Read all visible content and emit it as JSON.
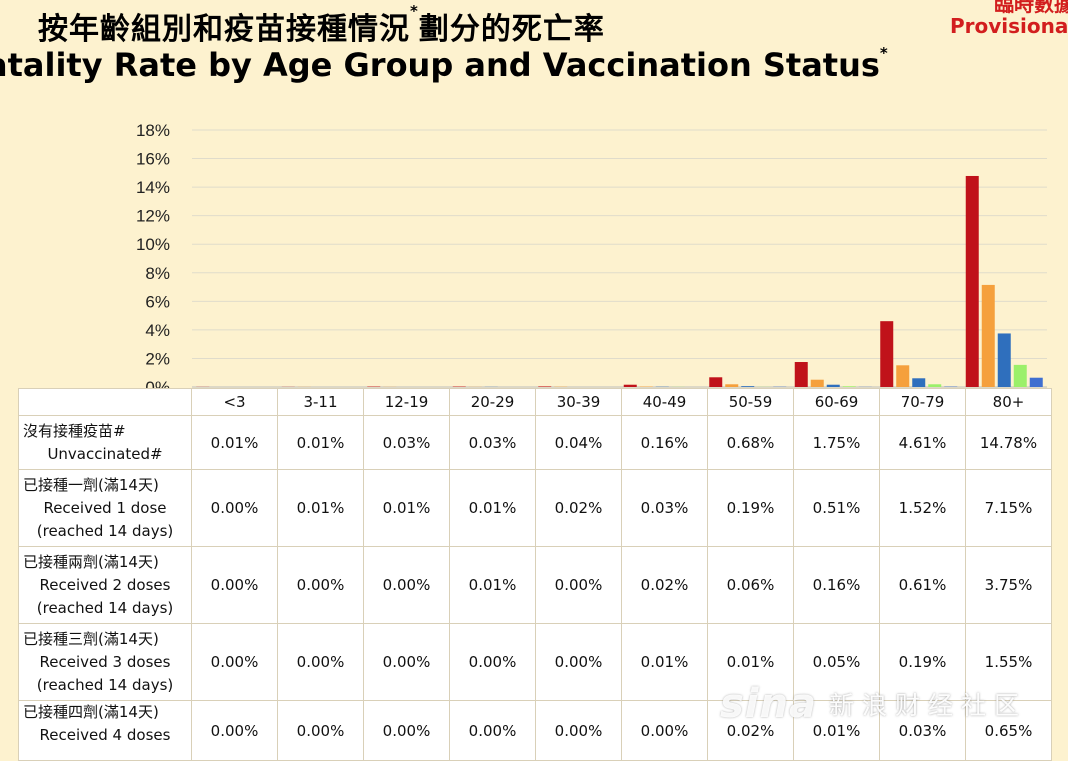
{
  "header": {
    "title_zh": "按年齡組別和疫苗接種情況",
    "title_zh_suffix": "劃分的死亡率",
    "title_en": "atality Rate by Age Group and Vaccination Status",
    "sup": "*",
    "provisional_zh": "臨時數據",
    "provisional_en": "Provisional"
  },
  "colors": {
    "background": "#fdf2cf",
    "unvaccinated": "#c0121a",
    "dose1": "#f5a03c",
    "dose2": "#2f6fbd",
    "dose3": "#9bf06a",
    "dose4": "#3f6fd0",
    "provisional": "#d21e1e"
  },
  "chart_data": {
    "type": "bar",
    "title": "Fatality Rate by Age Group and Vaccination Status",
    "ylim": [
      0,
      18
    ],
    "yticks": [
      "0%",
      "2%",
      "4%",
      "6%",
      "8%",
      "10%",
      "12%",
      "14%",
      "16%",
      "18%"
    ],
    "grid": true,
    "categories": [
      "<3",
      "3-11",
      "12-19",
      "20-29",
      "30-39",
      "40-49",
      "50-59",
      "60-69",
      "70-79",
      "80+"
    ],
    "series": [
      {
        "name": "沒有接種疫苗# Unvaccinated#",
        "values": [
          0.01,
          0.01,
          0.03,
          0.03,
          0.04,
          0.16,
          0.68,
          1.75,
          4.61,
          14.78
        ]
      },
      {
        "name": "已接種一劑(滿14天) Received 1 dose (reached 14 days)",
        "values": [
          0.0,
          0.01,
          0.01,
          0.01,
          0.02,
          0.03,
          0.19,
          0.51,
          1.52,
          7.15
        ]
      },
      {
        "name": "已接種兩劑(滿14天) Received 2 doses (reached 14 days)",
        "values": [
          0.0,
          0.0,
          0.0,
          0.01,
          0.0,
          0.02,
          0.06,
          0.16,
          0.61,
          3.75
        ]
      },
      {
        "name": "已接種三劑(滿14天) Received 3 doses (reached 14 days)",
        "values": [
          0.0,
          0.0,
          0.0,
          0.0,
          0.0,
          0.01,
          0.01,
          0.05,
          0.19,
          1.55
        ]
      },
      {
        "name": "已接種四劑(滿14天) Received 4 doses",
        "values": [
          0.0,
          0.0,
          0.0,
          0.0,
          0.0,
          0.0,
          0.02,
          0.01,
          0.03,
          0.65
        ]
      }
    ]
  },
  "table": {
    "columns": [
      "<3",
      "3-11",
      "12-19",
      "20-29",
      "30-39",
      "40-49",
      "50-59",
      "60-69",
      "70-79",
      "80+"
    ],
    "rows": [
      {
        "label_zh": "沒有接種疫苗#",
        "label_en1": "Unvaccinated#",
        "label_en2": "",
        "cells": [
          "0.01%",
          "0.01%",
          "0.03%",
          "0.03%",
          "0.04%",
          "0.16%",
          "0.68%",
          "1.75%",
          "4.61%",
          "14.78%"
        ]
      },
      {
        "label_zh": "已接種一劑(滿14天)",
        "label_en1": "Received 1 dose",
        "label_en2": "(reached 14 days)",
        "cells": [
          "0.00%",
          "0.01%",
          "0.01%",
          "0.01%",
          "0.02%",
          "0.03%",
          "0.19%",
          "0.51%",
          "1.52%",
          "7.15%"
        ]
      },
      {
        "label_zh": "已接種兩劑(滿14天)",
        "label_en1": "Received 2 doses",
        "label_en2": "(reached 14 days)",
        "cells": [
          "0.00%",
          "0.00%",
          "0.00%",
          "0.01%",
          "0.00%",
          "0.02%",
          "0.06%",
          "0.16%",
          "0.61%",
          "3.75%"
        ]
      },
      {
        "label_zh": "已接種三劑(滿14天)",
        "label_en1": "Received 3 doses",
        "label_en2": "(reached 14 days)",
        "cells": [
          "0.00%",
          "0.00%",
          "0.00%",
          "0.00%",
          "0.00%",
          "0.01%",
          "0.01%",
          "0.05%",
          "0.19%",
          "1.55%"
        ]
      },
      {
        "label_zh": "已接種四劑(滿14天)",
        "label_en1": "Received 4 doses",
        "label_en2": "",
        "cells": [
          "0.00%",
          "0.00%",
          "0.00%",
          "0.00%",
          "0.00%",
          "0.00%",
          "0.02%",
          "0.01%",
          "0.03%",
          "0.65%"
        ]
      }
    ]
  },
  "watermark": {
    "logo": "sina",
    "text": "新浪财经社区"
  }
}
